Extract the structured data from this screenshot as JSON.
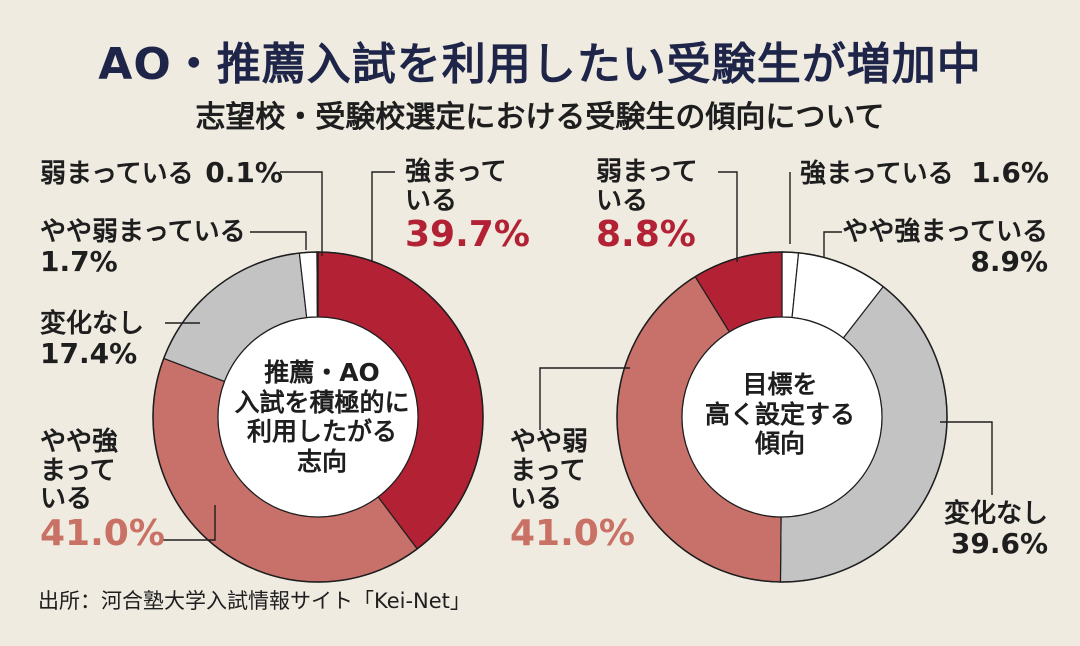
{
  "title": "AO・推薦入試を利用したい受験生が増加中",
  "subtitle": "志望校・受験校選定における受験生の傾向について",
  "source": "出所：河合塾大学入試情報サイト「Kei-Net」",
  "colors": {
    "strong": "#b22234",
    "somewhat_strong": "#c8706a",
    "no_change": "#c3c3c3",
    "somewhat_weak": "#ffffff",
    "weak": "#ffffff",
    "strong_text": "#b22234",
    "somewhat_strong_text": "#c97165"
  },
  "chart_data": [
    {
      "type": "pie",
      "center_label": [
        "推薦・AO",
        "入試を積極的に",
        "利用したがる",
        "志向"
      ],
      "slices": [
        {
          "label": "強まっている",
          "value": 39.7,
          "display": "39.7%"
        },
        {
          "label": "やや強まっている",
          "value": 41.0,
          "display": "41.0%"
        },
        {
          "label": "変化なし",
          "value": 17.4,
          "display": "17.4%"
        },
        {
          "label": "やや弱まっている",
          "value": 1.7,
          "display": "1.7%"
        },
        {
          "label": "弱まっている",
          "value": 0.1,
          "display": "0.1%"
        }
      ]
    },
    {
      "type": "pie",
      "center_label": [
        "目標を",
        "高く設定する",
        "傾向"
      ],
      "slices": [
        {
          "label": "強まっている",
          "value": 1.6,
          "display": "1.6%"
        },
        {
          "label": "やや強まっている",
          "value": 8.9,
          "display": "8.9%"
        },
        {
          "label": "変化なし",
          "value": 39.6,
          "display": "39.6%"
        },
        {
          "label": "やや弱まっている",
          "value": 41.0,
          "display": "41.0%"
        },
        {
          "label": "弱まっている",
          "value": 8.8,
          "display": "8.8%"
        }
      ]
    }
  ]
}
